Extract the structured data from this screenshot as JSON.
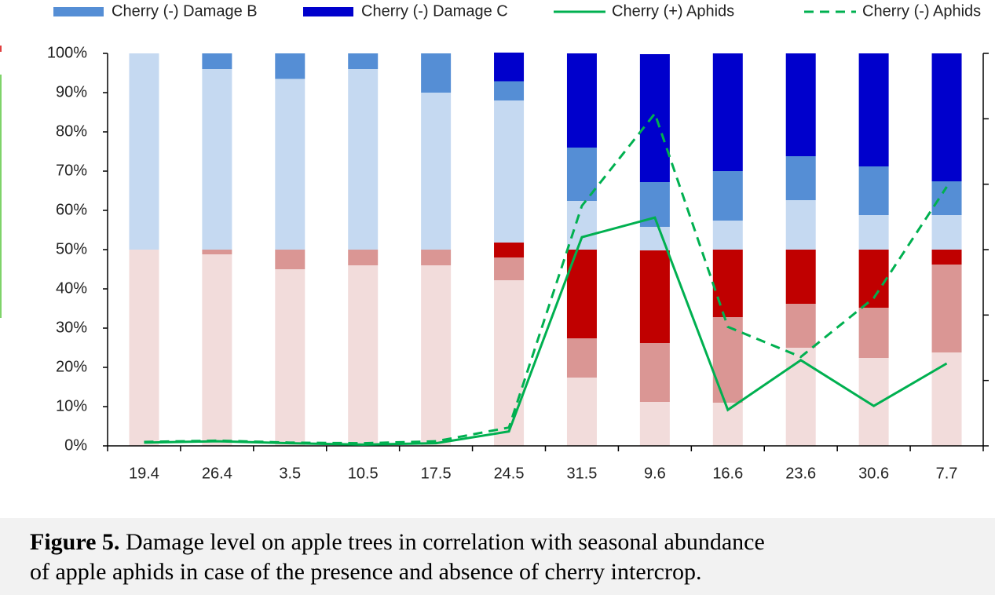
{
  "chart_data": {
    "type": "bar",
    "categories": [
      "19.4",
      "26.4",
      "3.5",
      "10.5",
      "17.5",
      "24.5",
      "31.5",
      "9.6",
      "16.6",
      "23.6",
      "30.6",
      "7.7"
    ],
    "series": [
      {
        "color": "#f2dcdb",
        "values": [
          50,
          48.8,
          45,
          46,
          46,
          42.2,
          17.4,
          11.2,
          11,
          25,
          22.4,
          23.8
        ]
      },
      {
        "color": "#da9694",
        "values": [
          0,
          1.2,
          5,
          4,
          4,
          5.8,
          10,
          15,
          21.8,
          11.2,
          12.8,
          22.4
        ]
      },
      {
        "color": "#c00000",
        "values": [
          0,
          0,
          0,
          0,
          0,
          3.8,
          22.6,
          23.6,
          17.2,
          13.8,
          14.8,
          3.8
        ]
      },
      {
        "color": "#c5d9f1",
        "values": [
          50,
          46,
          43.5,
          46,
          40,
          36.2,
          12.4,
          6,
          7.4,
          12.6,
          8.8,
          8.8
        ]
      },
      {
        "name": "Cherry (-) Damage B",
        "color": "#558ed5",
        "values": [
          0,
          4,
          6.5,
          4,
          10,
          4.9,
          13.6,
          11.4,
          12.6,
          11.2,
          12.4,
          8.6
        ]
      },
      {
        "name": "Cherry (-) Damage C",
        "color": "#0000cc",
        "values": [
          0,
          0,
          0,
          0,
          0,
          7.3,
          24,
          32.6,
          30,
          26.2,
          28.8,
          32.6
        ]
      },
      {
        "name": "Cherry (+) Aphids",
        "type": "line",
        "axis": "y2",
        "color": "#00b050",
        "dashed": false,
        "values": [
          0.05,
          0.07,
          0.04,
          0.02,
          0.04,
          0.22,
          3.19,
          3.49,
          0.55,
          1.31,
          0.61,
          1.26
        ]
      },
      {
        "name": "Cherry (-) Aphids",
        "type": "line",
        "axis": "y2",
        "color": "#00b050",
        "dashed": true,
        "values": [
          0.06,
          0.08,
          0.05,
          0.04,
          0.07,
          0.28,
          3.67,
          5.08,
          1.82,
          1.36,
          2.26,
          3.96
        ]
      }
    ],
    "ylim": [
      0,
      100
    ],
    "yticks": [
      {
        "value": 0,
        "label": "0%"
      },
      {
        "value": 10,
        "label": "10%"
      },
      {
        "value": 20,
        "label": "20%"
      },
      {
        "value": 30,
        "label": "30%"
      },
      {
        "value": 40,
        "label": "40%"
      },
      {
        "value": 50,
        "label": "50%"
      },
      {
        "value": 60,
        "label": "60%"
      },
      {
        "value": 70,
        "label": "70%"
      },
      {
        "value": 80,
        "label": "80%"
      },
      {
        "value": 90,
        "label": "90%"
      },
      {
        "value": 100,
        "label": "100%"
      }
    ],
    "y2lim": [
      0,
      6
    ],
    "y2ticks": [
      0,
      1,
      2,
      3,
      4,
      5,
      6
    ],
    "grid": false,
    "legend": "top"
  },
  "caption": {
    "label": "Figure 5.",
    "text": "Damage level on apple trees in correlation with seasonal abundance",
    "text2": "of apple aphids in case of the presence and absence of cherry intercrop."
  }
}
